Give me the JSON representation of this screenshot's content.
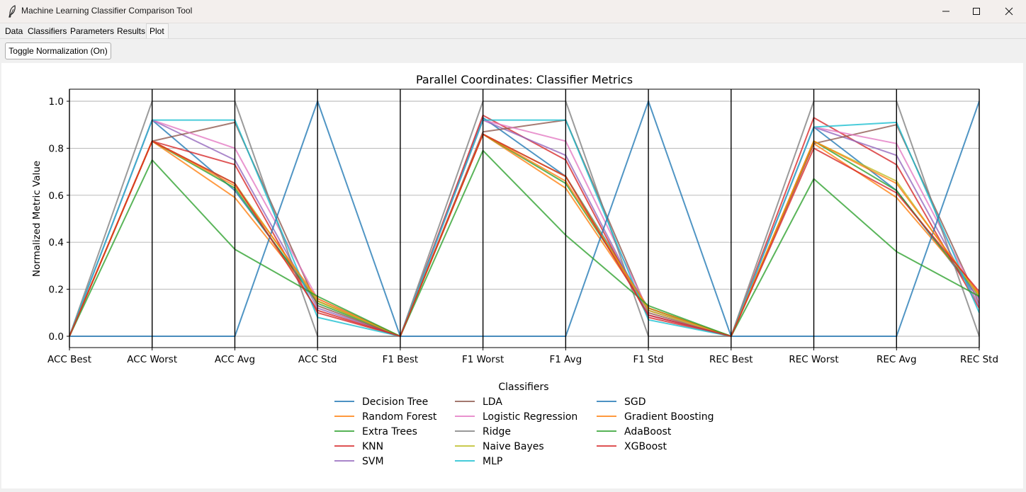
{
  "window": {
    "title": "Machine Learning Classifier Comparison Tool"
  },
  "tabs": [
    {
      "label": "Data"
    },
    {
      "label": "Classifiers"
    },
    {
      "label": "Parameters"
    },
    {
      "label": "Results"
    },
    {
      "label": "Plot",
      "active": true
    }
  ],
  "toolbar": {
    "toggle_label": "Toggle Normalization (On)"
  },
  "chart_data": {
    "type": "line",
    "subtype": "parallel-coordinates",
    "title": "Parallel Coordinates: Classifier Metrics",
    "ylabel": "Normalized Metric Value",
    "xlabel": "",
    "ylim": [
      0,
      1
    ],
    "yticks": [
      "0.0",
      "0.2",
      "0.4",
      "0.6",
      "0.8",
      "1.0"
    ],
    "grid": true,
    "legend_title": "Classifiers",
    "legend_position": "bottom-center",
    "categories": [
      "ACC Best",
      "ACC Worst",
      "ACC Avg",
      "ACC Std",
      "F1 Best",
      "F1 Worst",
      "F1 Avg",
      "F1 Std",
      "REC Best",
      "REC Worst",
      "REC Avg",
      "REC Std"
    ],
    "series": [
      {
        "name": "Decision Tree",
        "color": "#1f77b4",
        "values": [
          0,
          0.92,
          0.62,
          0.15,
          0,
          0.93,
          0.68,
          0.12,
          0,
          0.89,
          0.62,
          0.16
        ]
      },
      {
        "name": "Random Forest",
        "color": "#ff7f0e",
        "values": [
          0,
          0.83,
          0.59,
          0.15,
          0,
          0.86,
          0.63,
          0.11,
          0,
          0.82,
          0.59,
          0.18
        ]
      },
      {
        "name": "Extra Trees",
        "color": "#2ca02c",
        "values": [
          0,
          0.83,
          0.63,
          0.14,
          0,
          0.86,
          0.65,
          0.12,
          0,
          0.83,
          0.62,
          0.17
        ]
      },
      {
        "name": "KNN",
        "color": "#d62728",
        "values": [
          0,
          0.83,
          0.73,
          0.1,
          0,
          0.94,
          0.75,
          0.08,
          0,
          0.93,
          0.73,
          0.12
        ]
      },
      {
        "name": "SVM",
        "color": "#9467bd",
        "values": [
          0,
          0.92,
          0.75,
          0.12,
          0,
          0.92,
          0.77,
          0.09,
          0,
          0.89,
          0.77,
          0.13
        ]
      },
      {
        "name": "LDA",
        "color": "#8c564b",
        "values": [
          0,
          0.83,
          0.91,
          0.13,
          0,
          0.87,
          0.92,
          0.1,
          0,
          0.82,
          0.9,
          0.14
        ]
      },
      {
        "name": "Logistic Regression",
        "color": "#e377c2",
        "values": [
          0,
          0.92,
          0.8,
          0.16,
          0,
          0.92,
          0.83,
          0.11,
          0,
          0.89,
          0.82,
          0.15
        ]
      },
      {
        "name": "Ridge",
        "color": "#7f7f7f",
        "values": [
          0,
          1.0,
          1.0,
          0,
          0,
          1.0,
          1.0,
          0,
          0,
          1.0,
          1.0,
          0
        ]
      },
      {
        "name": "Naive Bayes",
        "color": "#bcbd22",
        "values": [
          0,
          0.83,
          0.65,
          0.15,
          0,
          0.86,
          0.68,
          0.11,
          0,
          0.83,
          0.66,
          0.17
        ]
      },
      {
        "name": "MLP",
        "color": "#17becf",
        "values": [
          0,
          0.92,
          0.92,
          0.08,
          0,
          0.92,
          0.92,
          0.07,
          0,
          0.89,
          0.91,
          0.1
        ]
      },
      {
        "name": "SGD",
        "color": "#1f77b4",
        "values": [
          0,
          0,
          0,
          1.0,
          0,
          0,
          0,
          1.0,
          0,
          0,
          0,
          1.0
        ]
      },
      {
        "name": "Gradient Boosting",
        "color": "#ff7f0e",
        "values": [
          0,
          0.83,
          0.64,
          0.16,
          0,
          0.86,
          0.66,
          0.12,
          0,
          0.83,
          0.65,
          0.18
        ]
      },
      {
        "name": "AdaBoost",
        "color": "#2ca02c",
        "values": [
          0,
          0.75,
          0.37,
          0.17,
          0,
          0.79,
          0.43,
          0.13,
          0,
          0.67,
          0.36,
          0.17
        ]
      },
      {
        "name": "XGBoost",
        "color": "#d62728",
        "values": [
          0,
          0.83,
          0.65,
          0.11,
          0,
          0.86,
          0.68,
          0.09,
          0,
          0.8,
          0.61,
          0.19
        ]
      }
    ]
  }
}
